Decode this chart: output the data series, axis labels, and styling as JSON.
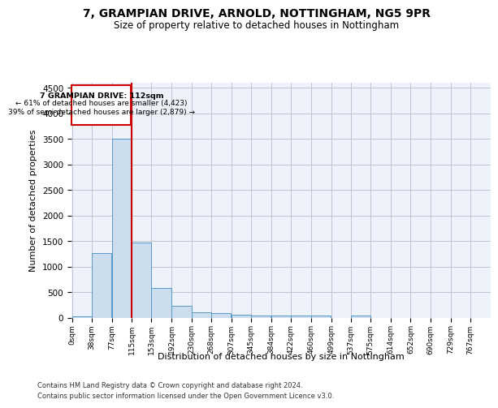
{
  "title": "7, GRAMPIAN DRIVE, ARNOLD, NOTTINGHAM, NG5 9PR",
  "subtitle": "Size of property relative to detached houses in Nottingham",
  "xlabel": "Distribution of detached houses by size in Nottingham",
  "ylabel": "Number of detached properties",
  "footer_line1": "Contains HM Land Registry data © Crown copyright and database right 2024.",
  "footer_line2": "Contains public sector information licensed under the Open Government Licence v3.0.",
  "bar_color": "#ccdded",
  "bar_edge_color": "#5599cc",
  "grid_color": "#bbbbcc",
  "background_color": "#eef2fa",
  "red_line_color": "#cc0000",
  "annotation_box_color": "#cc0000",
  "property_label": "7 GRAMPIAN DRIVE: 112sqm",
  "annotation_line1": "← 61% of detached houses are smaller (4,423)",
  "annotation_line2": "39% of semi-detached houses are larger (2,879) →",
  "bin_width": 38,
  "bins": [
    0,
    38,
    77,
    115,
    153,
    192,
    230,
    268,
    307,
    345,
    384,
    422,
    460,
    499,
    537,
    575,
    614,
    652,
    690,
    729,
    767
  ],
  "bin_labels": [
    "0sqm",
    "38sqm",
    "77sqm",
    "115sqm",
    "153sqm",
    "192sqm",
    "230sqm",
    "268sqm",
    "307sqm",
    "345sqm",
    "384sqm",
    "422sqm",
    "460sqm",
    "499sqm",
    "537sqm",
    "575sqm",
    "614sqm",
    "652sqm",
    "690sqm",
    "729sqm",
    "767sqm"
  ],
  "counts": [
    30,
    1275,
    3500,
    1480,
    580,
    240,
    115,
    90,
    65,
    50,
    55,
    50,
    50,
    5,
    50,
    5,
    5,
    5,
    5,
    5
  ],
  "ylim": [
    0,
    4600
  ],
  "yticks": [
    0,
    500,
    1000,
    1500,
    2000,
    2500,
    3000,
    3500,
    4000,
    4500
  ]
}
